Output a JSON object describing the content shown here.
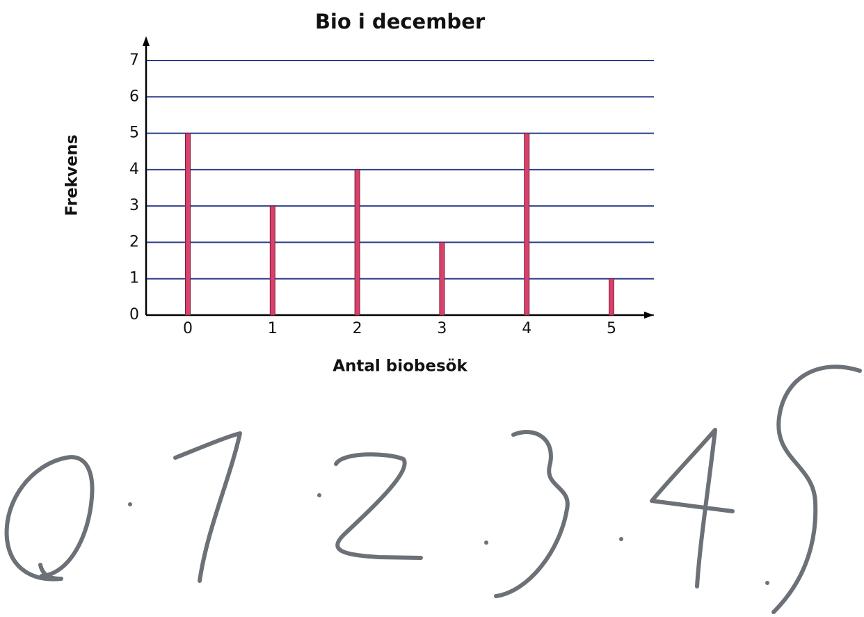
{
  "chart_data": {
    "type": "bar",
    "title": "Bio i december",
    "x_label": "Antal biobesök",
    "y_label": "Frekvens",
    "categories": [
      "0",
      "1",
      "2",
      "3",
      "4",
      "5"
    ],
    "values": [
      5,
      3,
      4,
      2,
      5,
      1
    ],
    "color": "#d9416b",
    "ylim": [
      0,
      7
    ],
    "yticks": [
      0,
      1,
      2,
      3,
      4,
      5,
      6,
      7
    ],
    "grid": true,
    "grid_color": "#2b3f8c"
  }
}
